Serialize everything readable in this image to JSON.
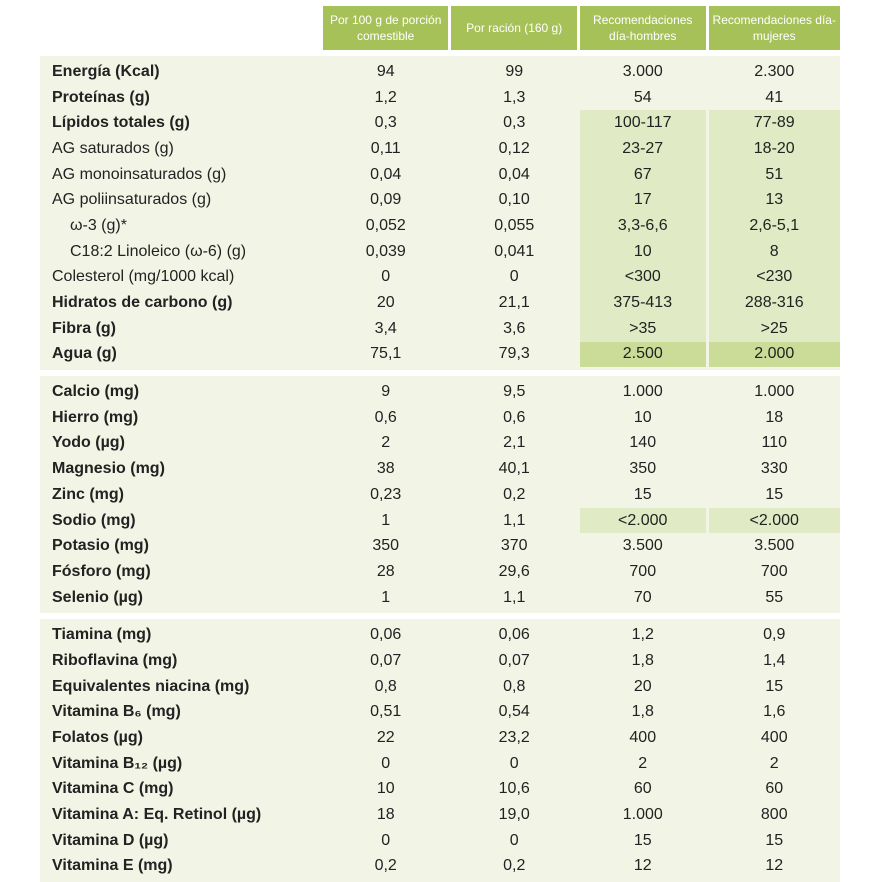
{
  "headers": [
    "Por 100 g de porción comestible",
    "Por ración (160 g)",
    "Recomendaciones día-hombres",
    "Recomendaciones día-mujeres"
  ],
  "sections": [
    {
      "rows": [
        {
          "label": "Energía (Kcal)",
          "bold": true,
          "values": [
            "94",
            "99",
            "3.000",
            "2.300"
          ]
        },
        {
          "label": "Proteínas (g)",
          "bold": true,
          "values": [
            "1,2",
            "1,3",
            "54",
            "41"
          ]
        },
        {
          "label": "Lípidos totales (g)",
          "bold": true,
          "values": [
            "0,3",
            "0,3",
            "100-117",
            "77-89"
          ],
          "highlight": "light"
        },
        {
          "label": "AG saturados (g)",
          "values": [
            "0,11",
            "0,12",
            "23-27",
            "18-20"
          ],
          "highlight": "light"
        },
        {
          "label": "AG monoinsaturados (g)",
          "values": [
            "0,04",
            "0,04",
            "67",
            "51"
          ],
          "highlight": "light"
        },
        {
          "label": "AG poliinsaturados (g)",
          "values": [
            "0,09",
            "0,10",
            "17",
            "13"
          ],
          "highlight": "light"
        },
        {
          "label": "ω-3 (g)*",
          "indent": true,
          "values": [
            "0,052",
            "0,055",
            "3,3-6,6",
            "2,6-5,1"
          ],
          "highlight": "light"
        },
        {
          "label": "C18:2 Linoleico (ω-6) (g)",
          "indent": true,
          "values": [
            "0,039",
            "0,041",
            "10",
            "8"
          ],
          "highlight": "light"
        },
        {
          "label": "Colesterol (mg/1000 kcal)",
          "values": [
            "0",
            "0",
            "<300",
            "<230"
          ],
          "highlight": "light"
        },
        {
          "label": "Hidratos de carbono (g)",
          "bold": true,
          "values": [
            "20",
            "21,1",
            "375-413",
            "288-316"
          ],
          "highlight": "light"
        },
        {
          "label": "Fibra (g)",
          "bold": true,
          "values": [
            "3,4",
            "3,6",
            ">35",
            ">25"
          ],
          "highlight": "light"
        },
        {
          "label": "Agua (g)",
          "bold": true,
          "values": [
            "75,1",
            "79,3",
            "2.500",
            "2.000"
          ],
          "highlight": "dark"
        }
      ]
    },
    {
      "rows": [
        {
          "label": "Calcio (mg)",
          "bold": true,
          "values": [
            "9",
            "9,5",
            "1.000",
            "1.000"
          ]
        },
        {
          "label": "Hierro (mg)",
          "bold": true,
          "values": [
            "0,6",
            "0,6",
            "10",
            "18"
          ]
        },
        {
          "label": "Yodo (µg)",
          "bold": true,
          "values": [
            "2",
            "2,1",
            "140",
            "110"
          ]
        },
        {
          "label": "Magnesio (mg)",
          "bold": true,
          "values": [
            "38",
            "40,1",
            "350",
            "330"
          ]
        },
        {
          "label": "Zinc (mg)",
          "bold": true,
          "values": [
            "0,23",
            "0,2",
            "15",
            "15"
          ]
        },
        {
          "label": "Sodio (mg)",
          "bold": true,
          "values": [
            "1",
            "1,1",
            "<2.000",
            "<2.000"
          ],
          "highlight": "light"
        },
        {
          "label": "Potasio (mg)",
          "bold": true,
          "values": [
            "350",
            "370",
            "3.500",
            "3.500"
          ]
        },
        {
          "label": "Fósforo (mg)",
          "bold": true,
          "values": [
            "28",
            "29,6",
            "700",
            "700"
          ]
        },
        {
          "label": "Selenio (µg)",
          "bold": true,
          "values": [
            "1",
            "1,1",
            "70",
            "55"
          ]
        }
      ]
    },
    {
      "rows": [
        {
          "label": "Tiamina (mg)",
          "bold": true,
          "values": [
            "0,06",
            "0,06",
            "1,2",
            "0,9"
          ]
        },
        {
          "label": "Riboflavina (mg)",
          "bold": true,
          "values": [
            "0,07",
            "0,07",
            "1,8",
            "1,4"
          ]
        },
        {
          "label": "Equivalentes niacina (mg)",
          "bold": true,
          "values": [
            "0,8",
            "0,8",
            "20",
            "15"
          ]
        },
        {
          "label": "Vitamina B₆ (mg)",
          "bold": true,
          "values": [
            "0,51",
            "0,54",
            "1,8",
            "1,6"
          ]
        },
        {
          "label": "Folatos (µg)",
          "bold": true,
          "values": [
            "22",
            "23,2",
            "400",
            "400"
          ]
        },
        {
          "label": "Vitamina B₁₂ (µg)",
          "bold": true,
          "values": [
            "0",
            "0",
            "2",
            "2"
          ]
        },
        {
          "label": "Vitamina C (mg)",
          "bold": true,
          "values": [
            "10",
            "10,6",
            "60",
            "60"
          ]
        },
        {
          "label": "Vitamina A: Eq. Retinol (µg)",
          "bold": true,
          "values": [
            "18",
            "19,0",
            "1.000",
            "800"
          ]
        },
        {
          "label": "Vitamina D (µg)",
          "bold": true,
          "values": [
            "0",
            "0",
            "15",
            "15"
          ]
        },
        {
          "label": "Vitamina E (mg)",
          "bold": true,
          "values": [
            "0,2",
            "0,2",
            "12",
            "12"
          ]
        }
      ]
    }
  ],
  "colors": {
    "header_bg": "#a7c159",
    "section_bg": "#f2f5e6",
    "highlight_light": "#e0eac5",
    "highlight_dark": "#cadc98"
  }
}
